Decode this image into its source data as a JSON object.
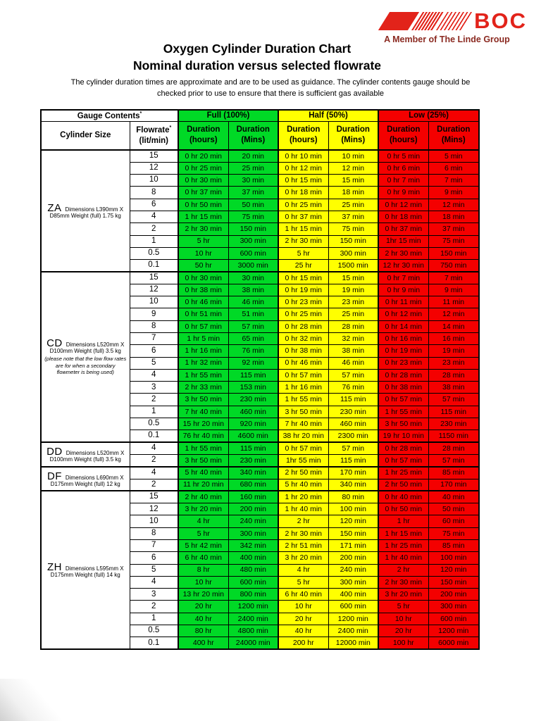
{
  "logo": {
    "brand": "BOC",
    "tagline": "A Member of The Linde Group"
  },
  "title": {
    "line1": "Oxygen Cylinder Duration Chart",
    "line2": "Nominal duration versus selected flowrate"
  },
  "note": {
    "line1": "The cylinder duration times are approximate and are to be used as guidance.  The cylinder contents gauge should be",
    "line2": "checked prior to use to ensure that there is sufficient gas available"
  },
  "colors": {
    "full": "#00d926",
    "half": "#ffff00",
    "low": "#f40000",
    "brand_red": "#e2231a",
    "tagline_red": "#8b2a21"
  },
  "table": {
    "group_headers": {
      "gauge": "Gauge Contents",
      "gauge_sup": "*",
      "full": "Full (100%)",
      "half": "Half (50%)",
      "low": "Low (25%)"
    },
    "col_headers": {
      "cylinder_size": "Cylinder Size",
      "flowrate": "Flowrate",
      "flowrate_sup": "*",
      "flowrate_unit": "(lit/min)",
      "duration": "Duration",
      "hours": "(hours)",
      "mins": "(Mins)"
    },
    "sections": [
      {
        "code": "ZA",
        "detail1": "Dimensions L390mm X",
        "detail2": "D85mm Weight (full) 1.75 kg",
        "note": "",
        "rows": [
          [
            "15",
            "0 hr 20 min",
            "20 min",
            "0 hr 10 min",
            "10 min",
            "0 hr 5 min",
            "5 min"
          ],
          [
            "12",
            "0 hr 25 min",
            "25 min",
            "0 hr 12 min",
            "12 min",
            "0 hr 6 min",
            "6 min"
          ],
          [
            "10",
            "0 hr 30 min",
            "30 min",
            "0 hr 15 min",
            "15 min",
            "0 hr 7 min",
            "7 min"
          ],
          [
            "8",
            "0 hr 37 min",
            "37 min",
            "0 hr 18 min",
            "18 min",
            "0 hr 9 min",
            "9 min"
          ],
          [
            "6",
            "0 hr 50 min",
            "50 min",
            "0 hr 25 min",
            "25 min",
            "0 hr 12 min",
            "12 min"
          ],
          [
            "4",
            "1 hr 15 min",
            "75 min",
            "0 hr 37 min",
            "37 min",
            "0 hr 18 min",
            "18 min"
          ],
          [
            "2",
            "2 hr 30 min",
            "150 min",
            "1 hr 15 min",
            "75 min",
            "0 hr 37 min",
            "37 min"
          ],
          [
            "1",
            "5 hr",
            "300 min",
            "2 hr 30 min",
            "150 min",
            "1hr 15 min",
            "75 min"
          ],
          [
            "0.5",
            "10 hr",
            "600 min",
            "5 hr",
            "300 min",
            "2 hr 30 min",
            "150 min"
          ],
          [
            "0.1",
            "50 hr",
            "3000 min",
            "25 hr",
            "1500 min",
            "12 hr 30 min",
            "750 min"
          ]
        ]
      },
      {
        "code": "CD",
        "detail1": "Dimensions L520mm X",
        "detail2": "D100mm Weight (full) 3.5 kg",
        "note": "(please note that the low flow rates are for when a secondary flowmeter is being used)",
        "rows": [
          [
            "15",
            "0 hr 30 min",
            "30 min",
            "0 hr 15 min",
            "15 min",
            "0 hr 7 min",
            "7 min"
          ],
          [
            "12",
            "0 hr 38 min",
            "38 min",
            "0 hr 19 min",
            "19 min",
            "0 hr 9 min",
            "9 min"
          ],
          [
            "10",
            "0 hr 46 min",
            "46 min",
            "0 hr 23 min",
            "23 min",
            "0 hr 11 min",
            "11 min"
          ],
          [
            "9",
            "0 hr 51 min",
            "51 min",
            "0 hr 25 min",
            "25 min",
            "0 hr 12 min",
            "12 min"
          ],
          [
            "8",
            "0 hr 57 min",
            "57 min",
            "0 hr 28 min",
            "28 min",
            "0 hr 14 min",
            "14 min"
          ],
          [
            "7",
            "1 hr 5 min",
            "65 min",
            "0 hr 32 min",
            "32 min",
            "0 hr 16 min",
            "16 min"
          ],
          [
            "6",
            "1 hr 16 min",
            "76 min",
            "0 hr 38 min",
            "38 min",
            "0 hr 19 min",
            "19 min"
          ],
          [
            "5",
            "1 hr 32 min",
            "92 min",
            "0 hr 46 min",
            "46 min",
            "0 hr 23 min",
            "23 min"
          ],
          [
            "4",
            "1 hr 55 min",
            "115 min",
            "0 hr 57 min",
            "57 min",
            "0 hr 28 min",
            "28 min"
          ],
          [
            "3",
            "2 hr 33 min",
            "153 min",
            "1 hr 16 min",
            "76 min",
            "0 hr 38 min",
            "38 min"
          ],
          [
            "2",
            "3 hr 50 min",
            "230 min",
            "1 hr 55 min",
            "115 min",
            "0 hr 57 min",
            "57 min"
          ],
          [
            "1",
            "7 hr 40 min",
            "460 min",
            "3 hr 50 min",
            "230 min",
            "1 hr 55 min",
            "115 min"
          ],
          [
            "0.5",
            "15 hr 20 min",
            "920 min",
            "7 hr 40 min",
            "460 min",
            "3 hr 50 min",
            "230 min"
          ],
          [
            "0.1",
            "76 hr 40 min",
            "4600 min",
            "38 hr 20 min",
            "2300 min",
            "19 hr 10 min",
            "1150 min"
          ]
        ]
      },
      {
        "code": "DD",
        "detail1": "Dimensions L520mm X",
        "detail2": "D100mm Weight (full) 3.5 kg",
        "note": "",
        "rows": [
          [
            "4",
            "1 hr 55 min",
            "115 min",
            "0 hr 57 min",
            "57 min",
            "0 hr 28 min",
            "28 min"
          ],
          [
            "2",
            "3 hr 50 min",
            "230 min",
            "1hr 55 min",
            "115 min",
            "0 hr 57 min",
            "57 min"
          ]
        ]
      },
      {
        "code": "DF",
        "detail1": "Dimensions L690mm X",
        "detail2": "D175mm Weight (full) 12 kg",
        "note": "",
        "rows": [
          [
            "4",
            "5 hr 40 min",
            "340 min",
            "2 hr 50 min",
            "170 min",
            "1 hr 25 min",
            "85 min"
          ],
          [
            "2",
            "11 hr 20 min",
            "680 min",
            "5 hr 40 min",
            "340 min",
            "2 hr 50 min",
            "170 min"
          ]
        ]
      },
      {
        "code": "ZH",
        "detail1": "Dimensions L595mm X",
        "detail2": "D175mm Weight (full) 14 kg",
        "note": "",
        "rows": [
          [
            "15",
            "2 hr 40 min",
            "160 min",
            "1 hr 20 min",
            "80 min",
            "0 hr 40 min",
            "40 min"
          ],
          [
            "12",
            "3 hr 20 min",
            "200 min",
            "1 hr 40 min",
            "100 min",
            "0 hr 50 min",
            "50 min"
          ],
          [
            "10",
            "4 hr",
            "240 min",
            "2 hr",
            "120 min",
            "1 hr",
            "60 min"
          ],
          [
            "8",
            "5 hr",
            "300 min",
            "2 hr 30 min",
            "150 min",
            "1 hr 15 min",
            "75 min"
          ],
          [
            "7",
            "5 hr 42 min",
            "342 min",
            "2 hr 51 min",
            "171 min",
            "1 hr 25 min",
            "85 min"
          ],
          [
            "6",
            "6 hr 40 min",
            "400 min",
            "3 hr 20 min",
            "200 min",
            "1 hr 40 min",
            "100 min"
          ],
          [
            "5",
            "8 hr",
            "480 min",
            "4 hr",
            "240 min",
            "2 hr",
            "120 min"
          ],
          [
            "4",
            "10 hr",
            "600 min",
            "5 hr",
            "300 min",
            "2 hr 30 min",
            "150 min"
          ],
          [
            "3",
            "13 hr 20 min",
            "800 min",
            "6 hr 40 min",
            "400 min",
            "3 hr 20 min",
            "200 min"
          ],
          [
            "2",
            "20 hr",
            "1200 min",
            "10 hr",
            "600 min",
            "5 hr",
            "300 min"
          ],
          [
            "1",
            "40 hr",
            "2400 min",
            "20 hr",
            "1200 min",
            "10 hr",
            "600 min"
          ],
          [
            "0.5",
            "80 hr",
            "4800 min",
            "40 hr",
            "2400 min",
            "20 hr",
            "1200 min"
          ],
          [
            "0.1",
            "400 hr",
            "24000 min",
            "200 hr",
            "12000 min",
            "100 hr",
            "6000 min"
          ]
        ]
      }
    ]
  }
}
